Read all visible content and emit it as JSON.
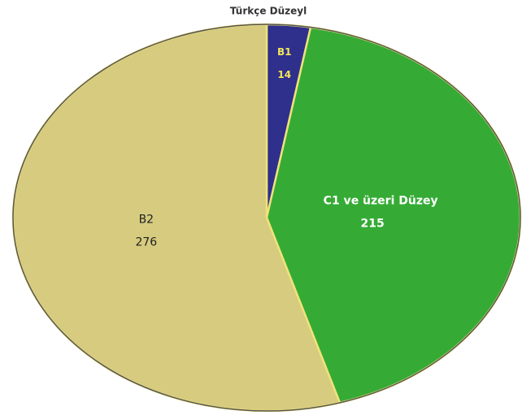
{
  "chart_data": {
    "type": "pie",
    "title": "Türkçe Düzeyl",
    "categories": [
      "B1",
      "C1 ve üzeri Düzey",
      "B2"
    ],
    "values": [
      14,
      215,
      276
    ],
    "colors": [
      "#2f2f8c",
      "#35ab35",
      "#d6cb7e"
    ],
    "label_colors": [
      "#f2e65a",
      "#ffffff",
      "#222222"
    ]
  }
}
